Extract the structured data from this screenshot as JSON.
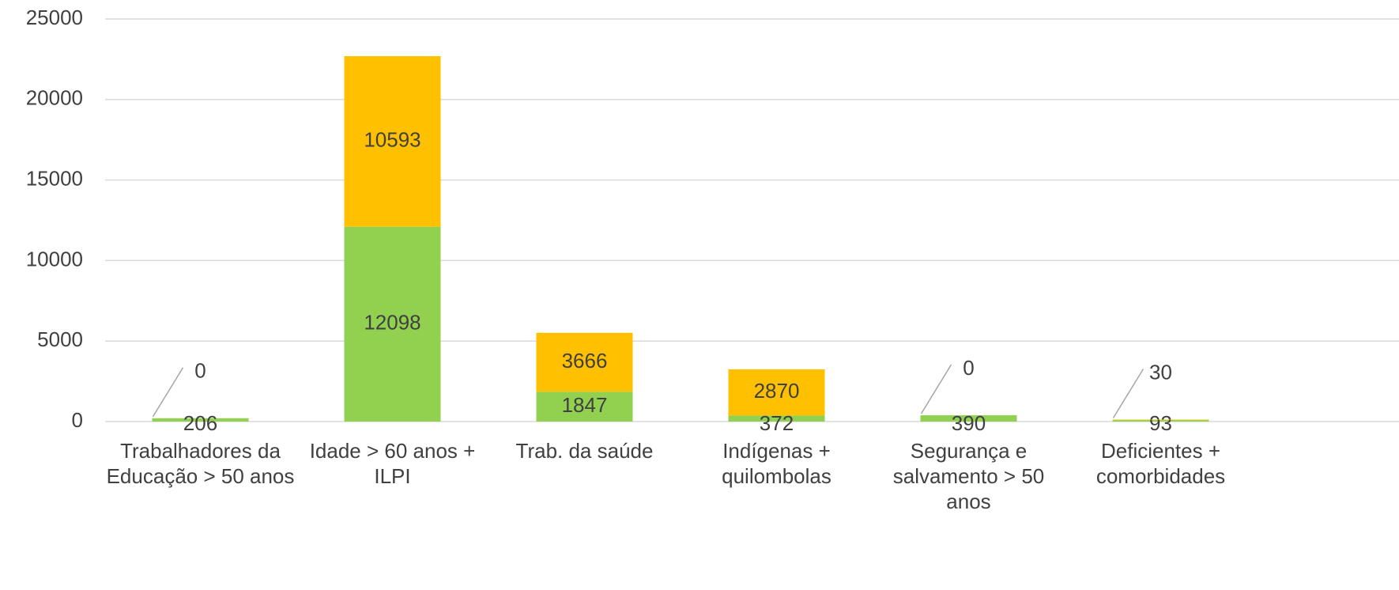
{
  "chart_data": {
    "type": "stacked_bar",
    "categories": [
      "Trabalhadores da Educação > 50 anos",
      "Idade > 60 anos + ILPI",
      "Trab. da saúde",
      "Indígenas + quilombolas",
      "Segurança e salvamento > 50 anos",
      "Deficientes + comorbidades"
    ],
    "series": [
      {
        "color": "#92d050",
        "values": [
          206,
          12098,
          1847,
          372,
          390,
          93
        ]
      },
      {
        "color": "#ffc000",
        "values": [
          0,
          10593,
          3666,
          2870,
          0,
          30
        ]
      }
    ],
    "ylim": [
      0,
      25000
    ],
    "yticks": [
      0,
      5000,
      10000,
      15000,
      20000,
      25000
    ],
    "grid": true
  }
}
